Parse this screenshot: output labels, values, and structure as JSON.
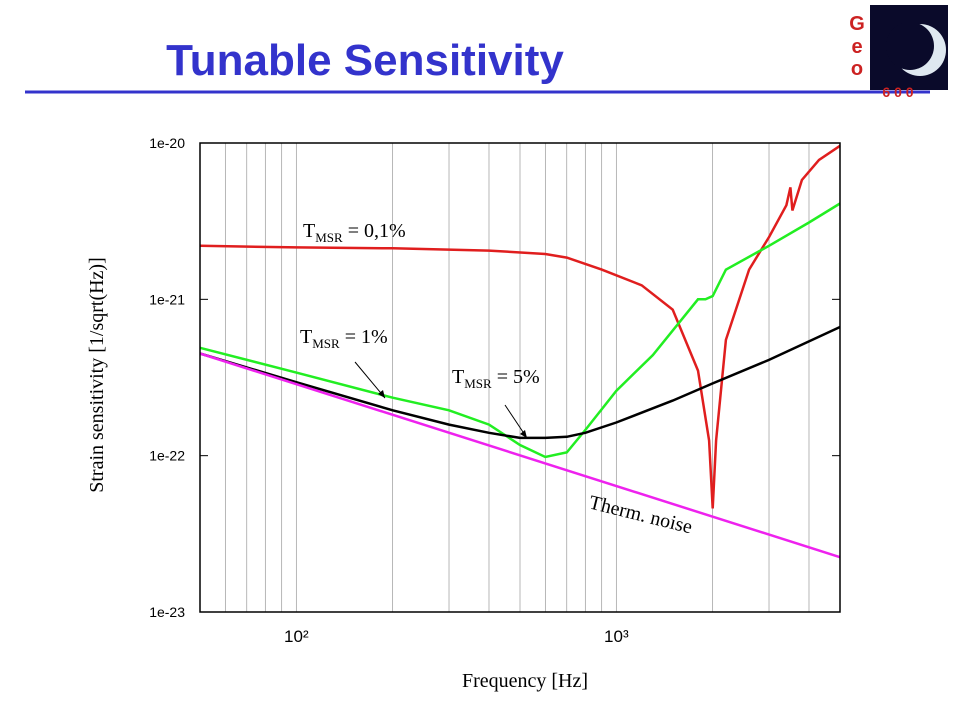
{
  "header": {
    "title": "Tunable Sensitivity"
  },
  "logo": {
    "letters": [
      "G",
      "e",
      "o"
    ],
    "number": "6 0 0"
  },
  "chart_data": {
    "type": "line",
    "x_label": "Frequency [Hz]",
    "y_label": "Strain sensitivity [1/sqrt(Hz)]",
    "log_x": true,
    "log_y": true,
    "grid": true,
    "xlim": [
      50,
      5000
    ],
    "ylim": [
      1e-23,
      1e-20
    ],
    "xticks": [
      {
        "value": 100,
        "label": "10²"
      },
      {
        "value": 1000,
        "label": "10³"
      }
    ],
    "x_minor_ticks": [
      60,
      70,
      80,
      90,
      200,
      300,
      400,
      500,
      600,
      700,
      800,
      900,
      2000,
      3000,
      4000
    ],
    "yticks": [
      {
        "value": 1e-23,
        "label": "1e-23"
      },
      {
        "value": 1e-22,
        "label": "1e-22"
      },
      {
        "value": 1e-21,
        "label": "1e-21"
      },
      {
        "value": 1e-20,
        "label": "1e-20"
      }
    ],
    "series": [
      {
        "label": {
          "main": "T",
          "sub": "MSR",
          "rest": " = 0,1%"
        },
        "color": "#e01e1e",
        "x": [
          50,
          100,
          200,
          400,
          600,
          700,
          900,
          1200,
          1500,
          1800,
          1950,
          2000,
          2050,
          2200,
          2600,
          3000,
          3400,
          3500,
          3550,
          3800,
          4300,
          5000
        ],
        "values": [
          2.2e-21,
          2.15e-21,
          2.12e-21,
          2.05e-21,
          1.95e-21,
          1.85e-21,
          1.55e-21,
          1.23e-21,
          8.6e-22,
          3.5e-22,
          1.25e-22,
          4.6e-23,
          1.25e-22,
          5.5e-22,
          1.55e-21,
          2.5e-21,
          4e-21,
          5.2e-21,
          3.7e-21,
          5.8e-21,
          7.8e-21,
          9.6e-21
        ]
      },
      {
        "label": {
          "main": "T",
          "sub": "MSR",
          "rest": " = 1%"
        },
        "color": "#22ee22",
        "x": [
          50,
          100,
          200,
          300,
          400,
          500,
          600,
          700,
          800,
          1000,
          1300,
          1800,
          1900,
          2000,
          2200,
          3000,
          4000,
          5000
        ],
        "values": [
          4.9e-22,
          3.4e-22,
          2.35e-22,
          1.95e-22,
          1.58e-22,
          1.17e-22,
          9.8e-23,
          1.05e-22,
          1.46e-22,
          2.6e-22,
          4.4e-22,
          1e-21,
          1e-21,
          1.05e-21,
          1.55e-21,
          2.2e-21,
          3.1e-21,
          4.1e-21
        ]
      },
      {
        "label": {
          "main": "T",
          "sub": "MSR",
          "rest": " = 5%"
        },
        "color": "#000000",
        "x": [
          50,
          100,
          200,
          300,
          400,
          500,
          600,
          700,
          800,
          1000,
          1500,
          2000,
          3000,
          5000
        ],
        "values": [
          4.5e-22,
          2.95e-22,
          1.95e-22,
          1.58e-22,
          1.4e-22,
          1.3e-22,
          1.3e-22,
          1.32e-22,
          1.4e-22,
          1.63e-22,
          2.25e-22,
          2.9e-22,
          4.1e-22,
          6.65e-22
        ]
      },
      {
        "label": {
          "main": "Therm. noise"
        },
        "color": "#ee22ee",
        "x": [
          50,
          5000
        ],
        "values": [
          4.5e-22,
          2.24e-23
        ]
      }
    ]
  }
}
